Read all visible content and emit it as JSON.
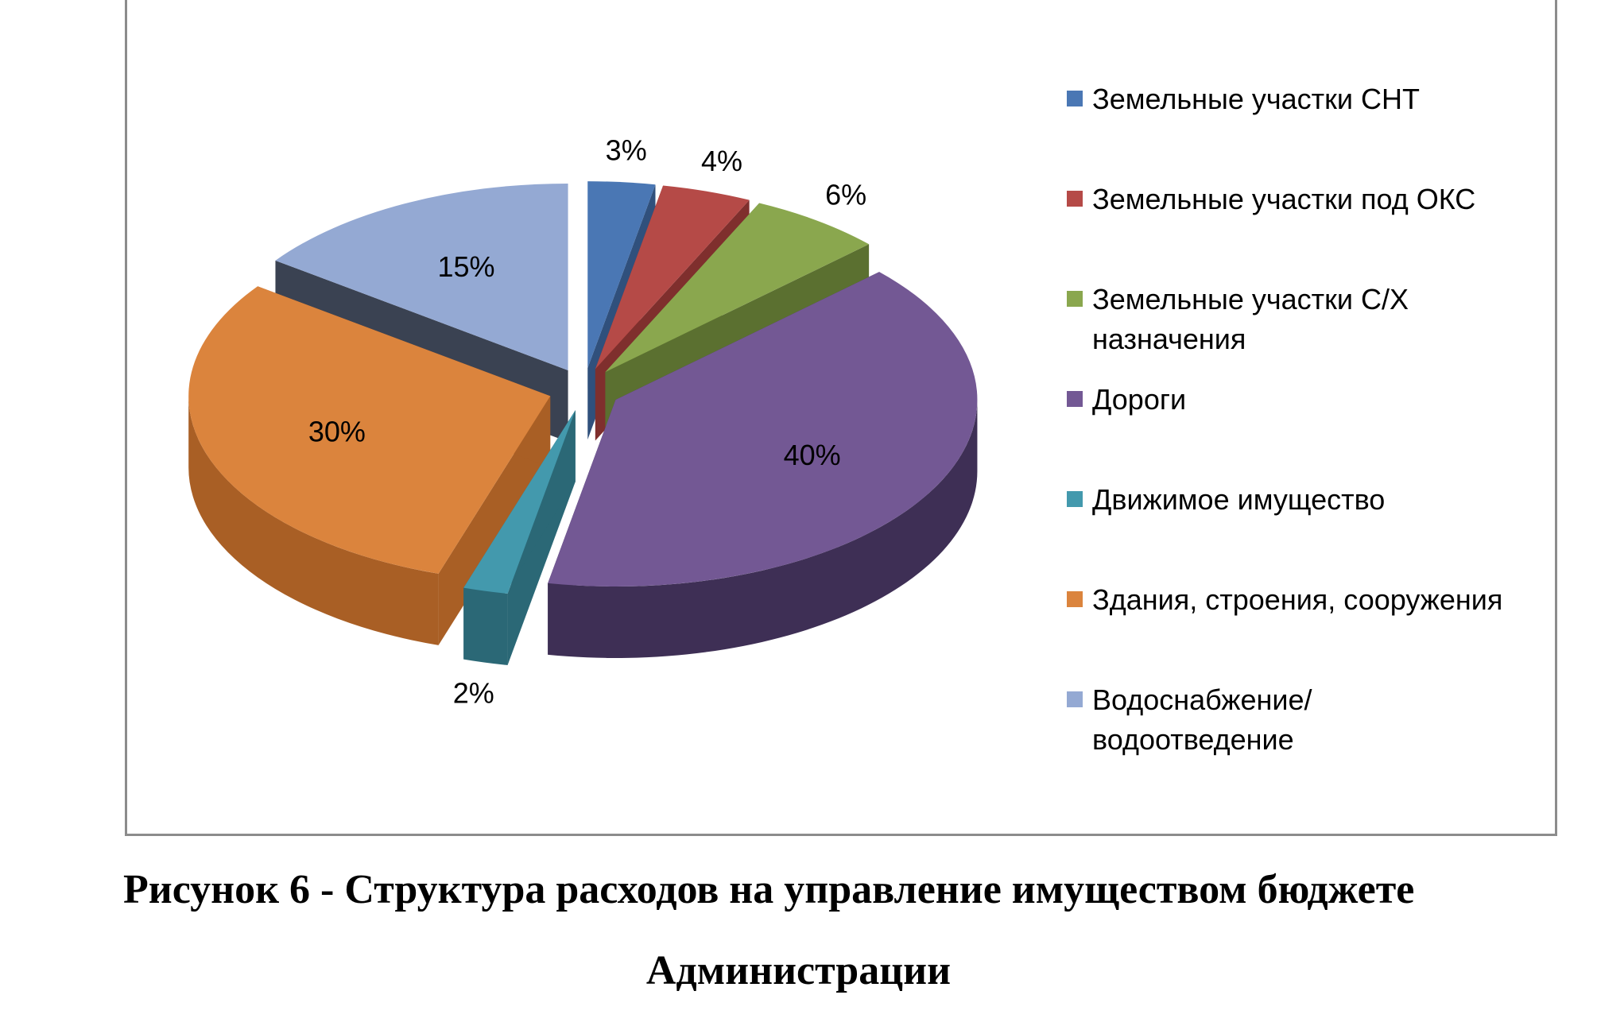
{
  "chart_data": {
    "type": "pie",
    "variant": "3d-exploded",
    "title": "",
    "legend_position": "right",
    "slices": [
      {
        "name": "Земельные участки СНТ",
        "value": 3,
        "label": "3%",
        "color": "#4a77b4",
        "side": "#30507c"
      },
      {
        "name": "Земельные участки под ОКС",
        "value": 4,
        "label": "4%",
        "color": "#b54a47",
        "side": "#7f2f2d"
      },
      {
        "name": "Земельные участки С/Х назначения",
        "value": 6,
        "label": "6%",
        "color": "#8aa74e",
        "side": "#5b7030"
      },
      {
        "name": "Дороги",
        "value": 40,
        "label": "40%",
        "color": "#735894",
        "side": "#3e2f55"
      },
      {
        "name": "Движимое имущество",
        "value": 2,
        "label": "2%",
        "color": "#4399ad",
        "side": "#2b6876"
      },
      {
        "name": "Здания, строения, сооружения",
        "value": 30,
        "label": "30%",
        "color": "#db843d",
        "side": "#a95f25"
      },
      {
        "name": "Водоснабжение/ водоотведение",
        "value": 15,
        "label": "15%",
        "color": "#94a9d3",
        "side": "#3a4252"
      }
    ]
  },
  "legend": {
    "items": [
      {
        "lines": [
          "Земельные участки СНТ"
        ],
        "color": "#4a77b4"
      },
      {
        "lines": [
          "Земельные участки под ОКС"
        ],
        "color": "#b54a47"
      },
      {
        "lines": [
          "Земельные участки С/Х",
          "назначения"
        ],
        "color": "#8aa74e"
      },
      {
        "lines": [
          "Дороги"
        ],
        "color": "#735894"
      },
      {
        "lines": [
          "Движимое имущество"
        ],
        "color": "#4399ad"
      },
      {
        "lines": [
          "Здания, строения, сооружения"
        ],
        "color": "#db843d"
      },
      {
        "lines": [
          "Водоснабжение/",
          "водоотведение"
        ],
        "color": "#94a9d3"
      }
    ]
  },
  "caption": {
    "line1": "Рисунок 6 -  Структура расходов на управление имуществом бюджете",
    "line2": "Администрации"
  }
}
